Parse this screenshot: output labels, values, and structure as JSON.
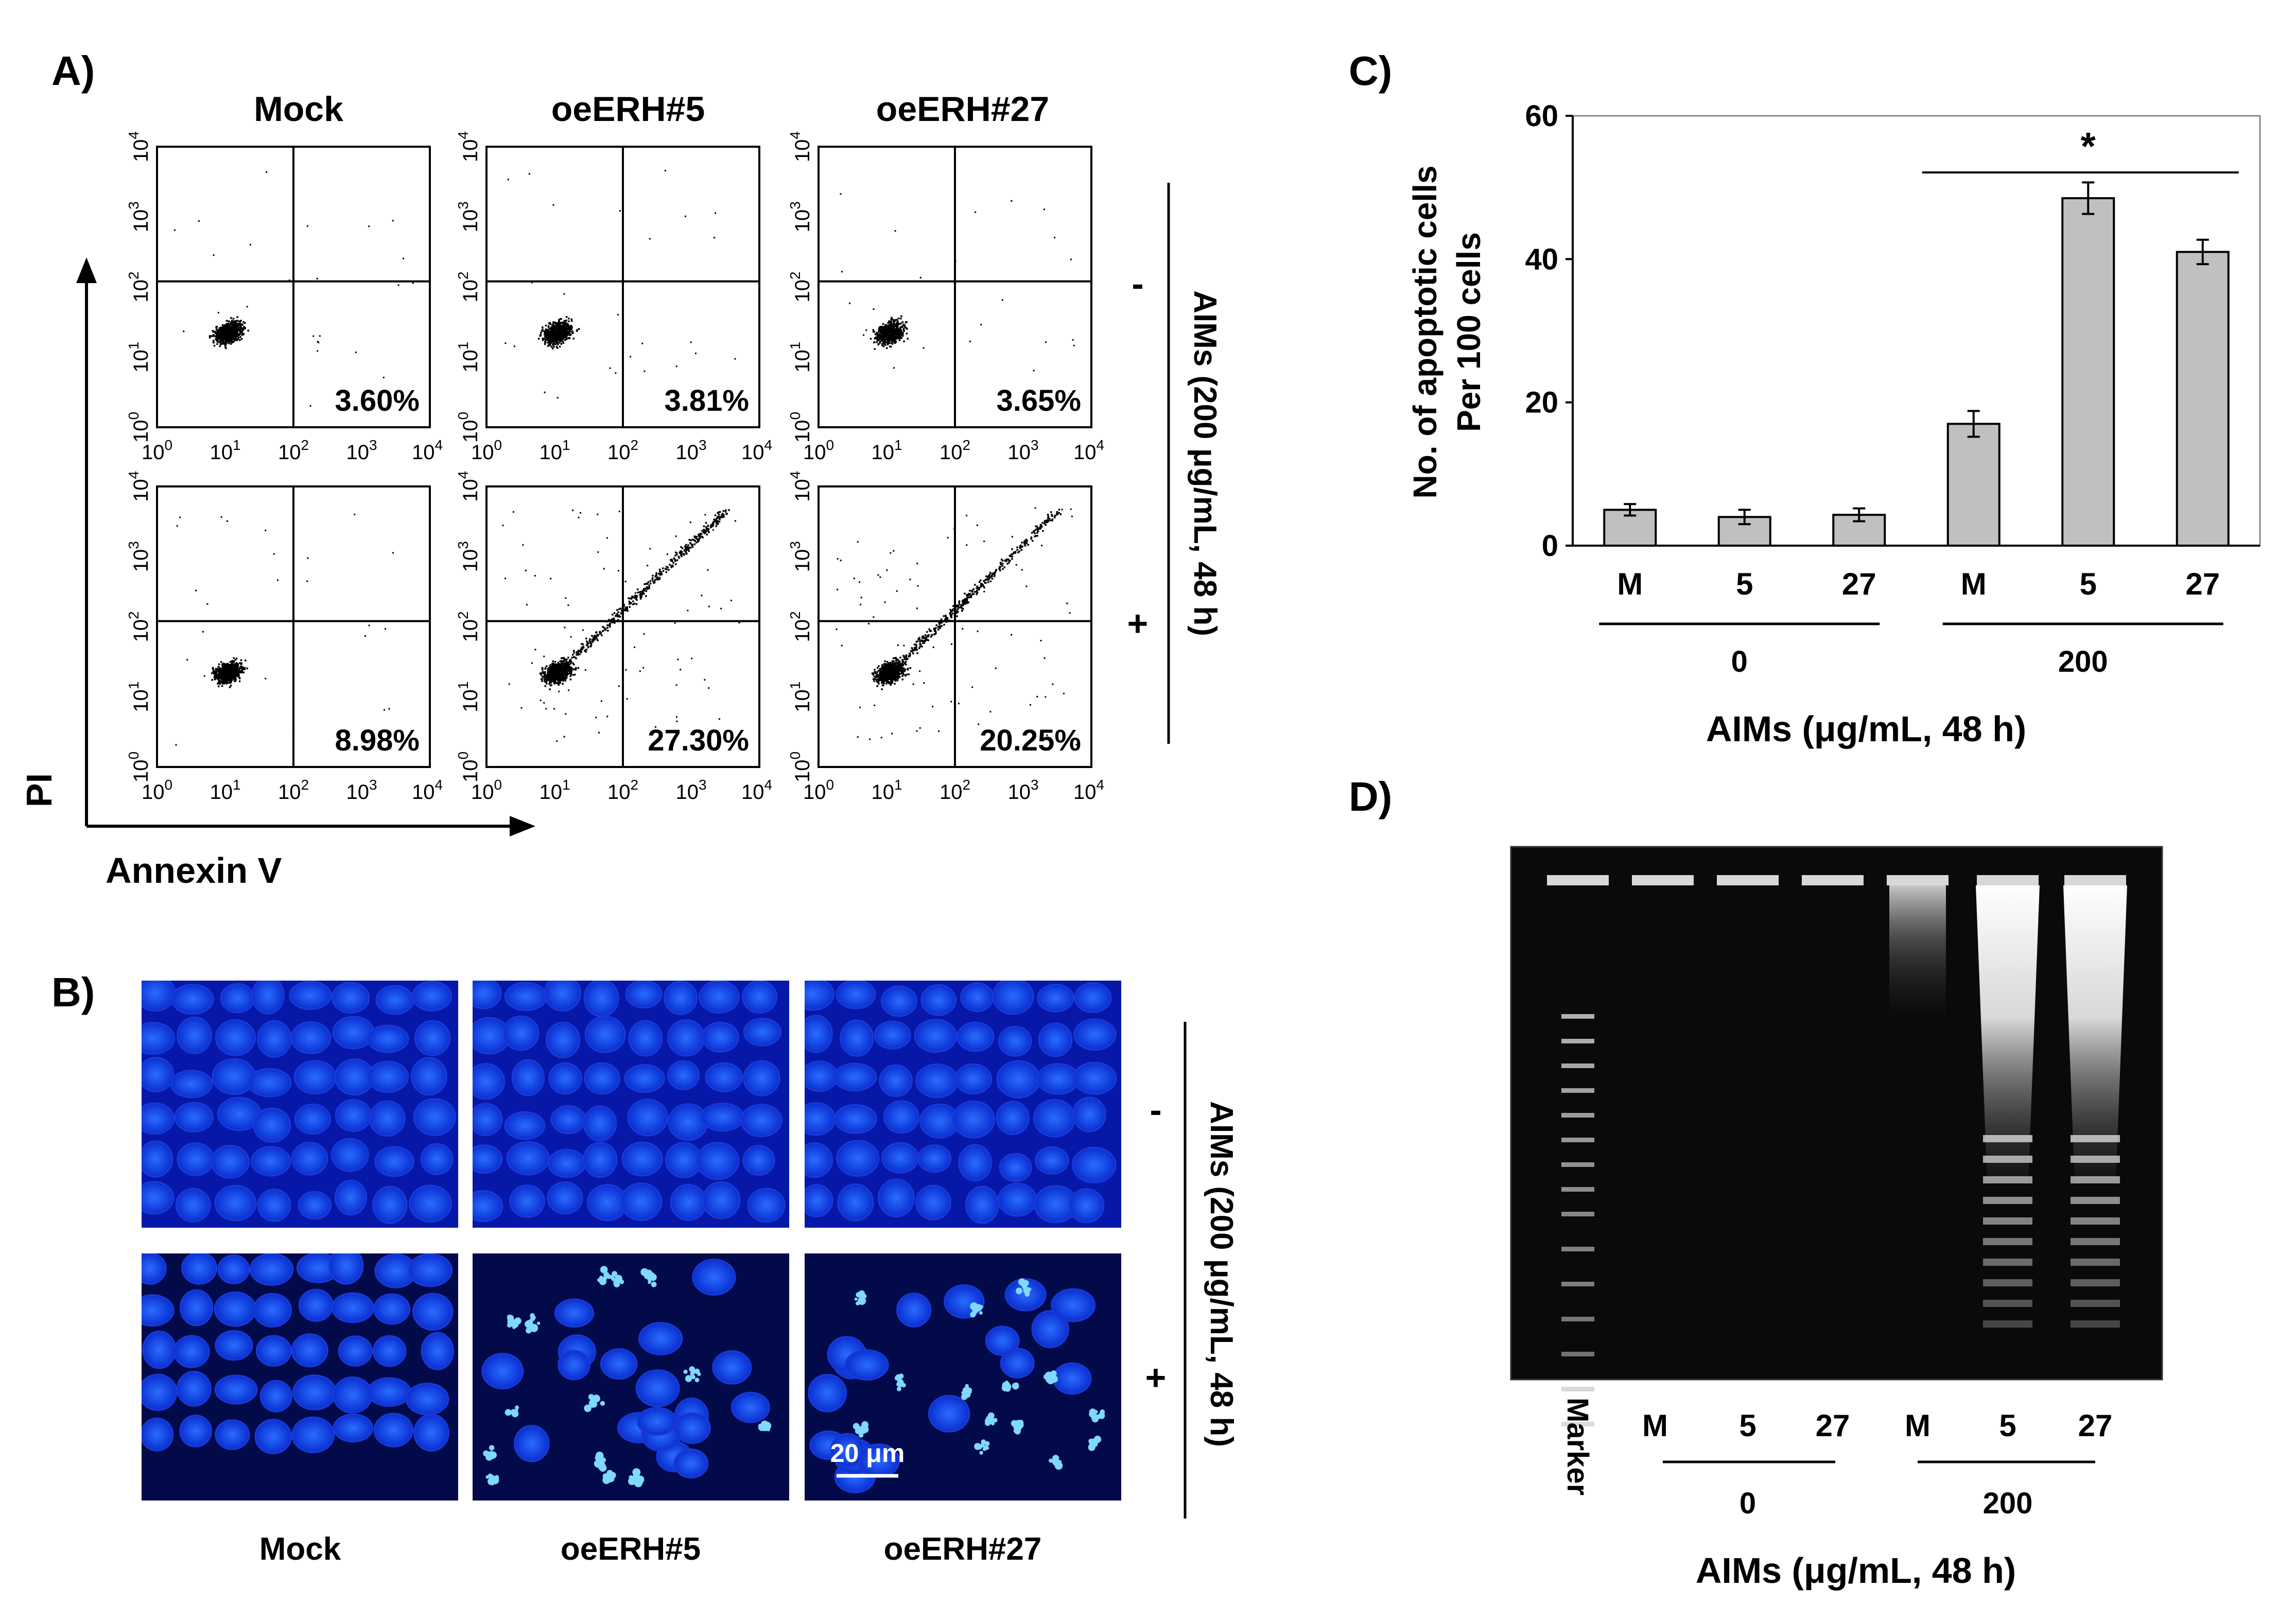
{
  "panel_a": {
    "letter": "A)",
    "columns": [
      "Mock",
      "oeERH#5",
      "oeERH#27"
    ],
    "rows": [
      "-",
      "+"
    ],
    "side_label": "AIMs (200 μg/mL, 48 h)",
    "x_axis_label": "Annexin V",
    "y_axis_label": "PI",
    "tick_base": "10",
    "tick_exponents": [
      "0",
      "1",
      "2",
      "3",
      "4"
    ],
    "percentages": [
      [
        "3.60%",
        "3.81%",
        "3.65%"
      ],
      [
        "8.98%",
        "27.30%",
        "20.25%"
      ]
    ]
  },
  "panel_b": {
    "letter": "B)",
    "columns": [
      "Mock",
      "oeERH#5",
      "oeERH#27"
    ],
    "rows": [
      "-",
      "+"
    ],
    "side_label": "AIMs (200 μg/mL, 48 h)",
    "scale_bar": "20 μm"
  },
  "panel_d": {
    "letter": "D)",
    "marker_label": "Marker",
    "lanes": [
      "M",
      "5",
      "27",
      "M",
      "5",
      "27"
    ],
    "groups": [
      "0",
      "200"
    ],
    "xlabel": "AIMs (μg/mL, 48 h)"
  },
  "chart_data": {
    "type": "bar",
    "panel_letter": "C)",
    "categories": [
      "M",
      "5",
      "27",
      "M",
      "5",
      "27"
    ],
    "groups": [
      "0",
      "200"
    ],
    "values": [
      5.0,
      4.0,
      4.3,
      17.0,
      48.5,
      41.0
    ],
    "errors": [
      0.8,
      1.0,
      0.9,
      1.8,
      2.2,
      1.7
    ],
    "ylabel_line1": "No. of apoptotic cells",
    "ylabel_line2": "Per 100 cells",
    "xlabel": "AIMs (μg/mL, 48 h)",
    "ylim": [
      0,
      60
    ],
    "yticks": [
      "0",
      "20",
      "40",
      "60"
    ],
    "significance": "*",
    "bar_color": "#c0c0c0"
  }
}
